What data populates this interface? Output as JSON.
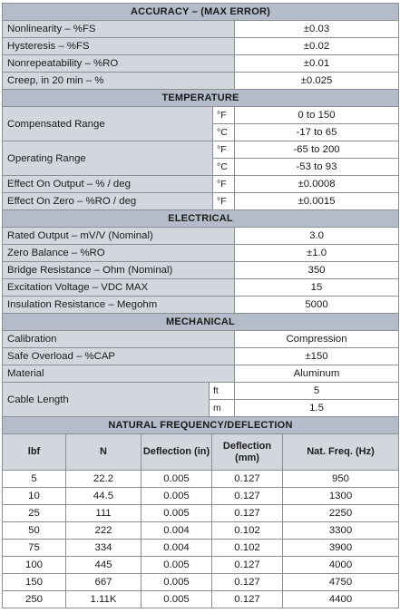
{
  "accuracy": {
    "header": "ACCURACY – (MAX ERROR)",
    "rows": [
      {
        "label": "Nonlinearity – %FS",
        "value": "±0.03"
      },
      {
        "label": "Hysteresis – %FS",
        "value": "±0.02"
      },
      {
        "label": "Nonrepeatability – %RO",
        "value": "±0.01"
      },
      {
        "label": "Creep, in 20 min – %",
        "value": "±0.025"
      }
    ]
  },
  "temperature": {
    "header": "TEMPERATURE",
    "compensated": {
      "label": "Compensated Range",
      "unit_f": "°F",
      "value_f": "0 to 150",
      "unit_c": "°C",
      "value_c": "-17 to 65"
    },
    "operating": {
      "label": "Operating Range",
      "unit_f": "°F",
      "value_f": "-65 to 200",
      "unit_c": "°C",
      "value_c": "-53 to 93"
    },
    "rows": [
      {
        "label": "Effect On Output – % / deg",
        "unit": "°F",
        "value": "±0.0008"
      },
      {
        "label": "Effect On Zero – %RO / deg",
        "unit": "°F",
        "value": "±0.0015"
      }
    ]
  },
  "electrical": {
    "header": "ELECTRICAL",
    "rows": [
      {
        "label": "Rated Output – mV/V (Nominal)",
        "value": "3.0"
      },
      {
        "label": "Zero Balance – %RO",
        "value": "±1.0"
      },
      {
        "label": "Bridge Resistance – Ohm (Nominal)",
        "value": "350"
      },
      {
        "label": "Excitation Voltage – VDC MAX",
        "value": "15"
      },
      {
        "label": "Insulation Resistance – Megohm",
        "value": "5000"
      }
    ]
  },
  "mechanical": {
    "header": "MECHANICAL",
    "rows": [
      {
        "label": "Calibration",
        "value": "Compression"
      },
      {
        "label": "Safe Overload – %CAP",
        "value": "±150"
      },
      {
        "label": "Material",
        "value": "Aluminum"
      }
    ],
    "cable": {
      "label": "Cable Length",
      "unit_ft": "ft",
      "value_ft": "5",
      "unit_m": "m",
      "value_m": "1.5"
    }
  },
  "frequency": {
    "header": "NATURAL FREQUENCY/DEFLECTION",
    "columns": [
      "lbf",
      "N",
      "Deflection (in)",
      "Deflection (mm)",
      "Nat. Freq. (Hz)"
    ],
    "rows": [
      [
        "5",
        "22.2",
        "0.005",
        "0.127",
        "950"
      ],
      [
        "10",
        "44.5",
        "0.005",
        "0.127",
        "1300"
      ],
      [
        "25",
        "111",
        "0.005",
        "0.127",
        "2250"
      ],
      [
        "50",
        "222",
        "0.004",
        "0.102",
        "3300"
      ],
      [
        "75",
        "334",
        "0.004",
        "0.102",
        "3900"
      ],
      [
        "100",
        "445",
        "0.005",
        "0.127",
        "4000"
      ],
      [
        "150",
        "667",
        "0.005",
        "0.127",
        "4750"
      ],
      [
        "250",
        "1.11K",
        "0.005",
        "0.127",
        "4400"
      ]
    ]
  }
}
